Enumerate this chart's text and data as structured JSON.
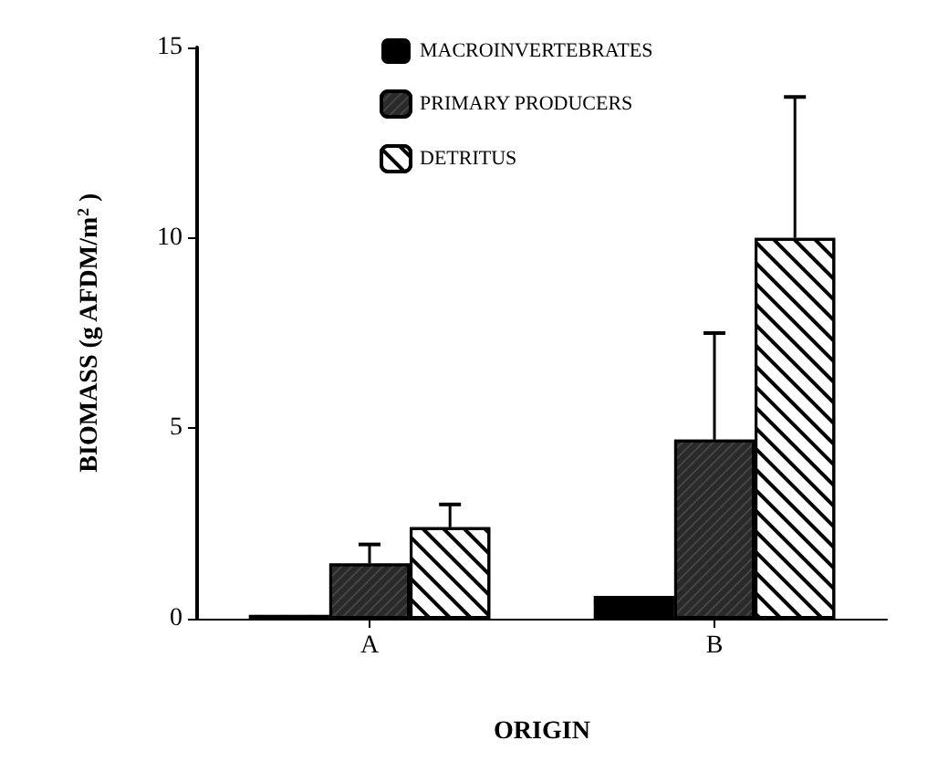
{
  "chart_data": {
    "type": "bar",
    "categories": [
      "A",
      "B"
    ],
    "xlabel": "ORIGIN",
    "ylabel": "BIOMASS (g AFDM/m$^{2}$ )",
    "series": [
      {
        "name": "MACROINVERTEBRATES",
        "color": "#000000",
        "values": [
          0.1,
          0.6
        ]
      },
      {
        "name": "PRIMARY PRODUCERS",
        "color": "#2a2a2a",
        "values": [
          1.45,
          4.7
        ],
        "errors": [
          [
            1.45,
            1.95
          ],
          [
            4.7,
            7.5
          ]
        ]
      },
      {
        "name": "DETRITUS",
        "color": "#ffffff",
        "values": [
          2.4,
          10.0
        ],
        "errors": [
          [
            2.4,
            3.0
          ],
          [
            10.0,
            13.7
          ]
        ]
      }
    ],
    "ylim": [
      0,
      15
    ],
    "yticks": [
      0,
      5,
      10,
      15
    ],
    "grid": false,
    "legend": "top"
  }
}
